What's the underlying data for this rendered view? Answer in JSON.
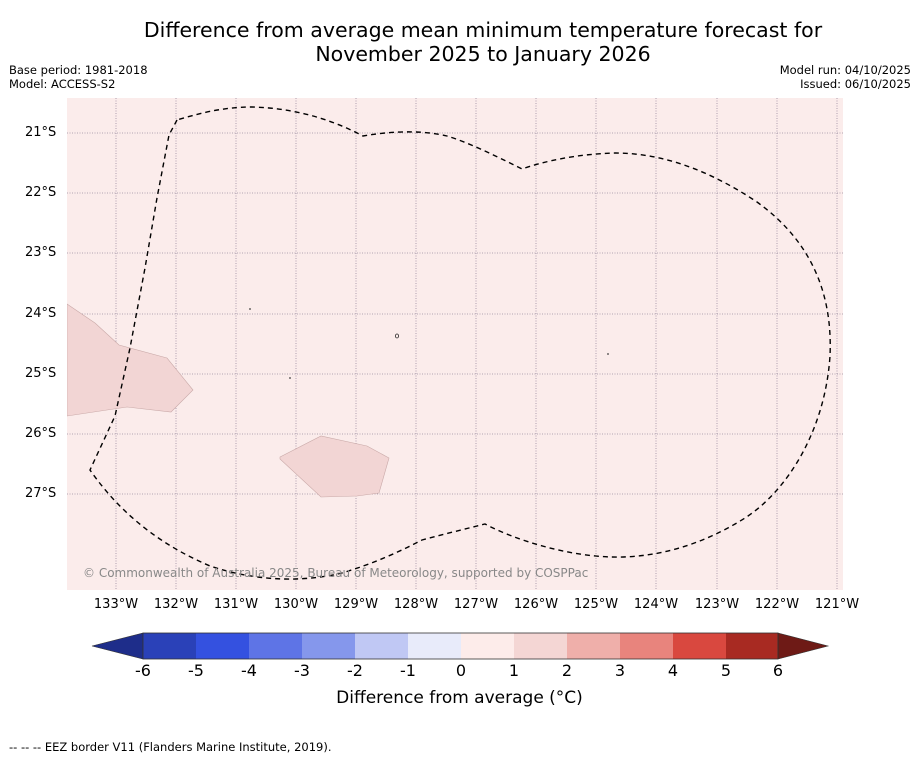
{
  "title": {
    "line1": "Difference from average mean minimum temperature forecast for",
    "line2": "November 2025 to January 2026"
  },
  "meta": {
    "base_period": "Base period: 1981-2018",
    "model": "Model: ACCESS-S2",
    "model_run": "Model run: 04/10/2025",
    "issued": "Issued: 06/10/2025"
  },
  "map": {
    "latitudes": [
      "21°S",
      "22°S",
      "23°S",
      "24°S",
      "25°S",
      "26°S",
      "27°S"
    ],
    "longitudes": [
      "133°W",
      "132°W",
      "131°W",
      "130°W",
      "129°W",
      "128°W",
      "127°W",
      "126°W",
      "125°W",
      "124°W",
      "123°W",
      "122°W",
      "121°W"
    ],
    "background_color": "#fbeceb",
    "anomaly_patch_color": "#f2d5d4",
    "copyright": "© Commonwealth of Australia 2025, Bureau of Meteorology, supported by COSPPac"
  },
  "colorbar": {
    "ticks": [
      "-6",
      "-5",
      "-4",
      "-3",
      "-2",
      "-1",
      "0",
      "1",
      "2",
      "3",
      "4",
      "5",
      "6"
    ],
    "colors": [
      "#1e2d8a",
      "#2a41b8",
      "#3451e0",
      "#5e74e6",
      "#8597ec",
      "#c0c8f4",
      "#e8ebfa",
      "#fdecea",
      "#f4d6d4",
      "#efafaa",
      "#e8847d",
      "#d9483f",
      "#a82a22",
      "#6e1a16"
    ],
    "label": "Difference from average (°C)"
  },
  "legend": {
    "eez": "--  --  -- EEZ border V11 (Flanders Marine Institute, 2019)."
  }
}
